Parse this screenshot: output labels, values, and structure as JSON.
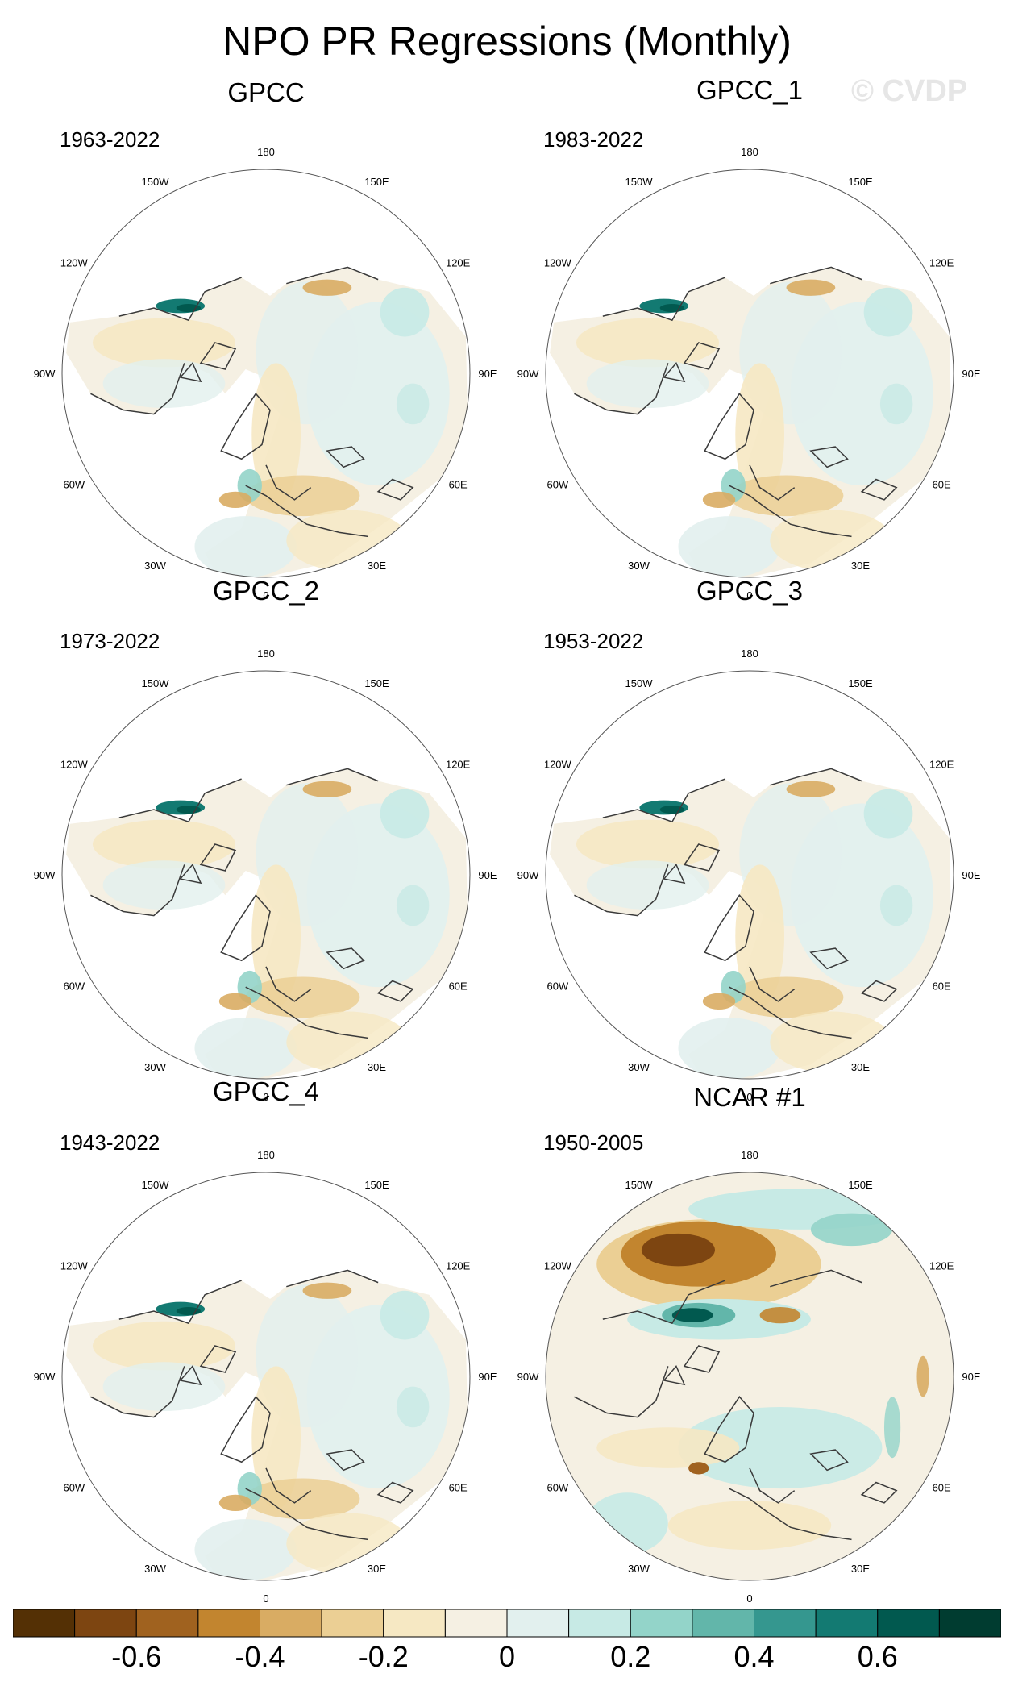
{
  "title": "NPO PR Regressions (Monthly)",
  "watermark": "© CVDP",
  "chart_data": {
    "type": "heatmap",
    "projection": "polar stereographic (Northern Hemisphere)",
    "title": "NPO PR Regressions (Monthly)",
    "longitude_labels": [
      "180",
      "150E",
      "120E",
      "90E",
      "60E",
      "30E",
      "0",
      "30W",
      "60W",
      "90W",
      "120W",
      "150W"
    ],
    "panels": [
      {
        "name": "GPCC",
        "years": "1963-2022",
        "pattern": "obs"
      },
      {
        "name": "GPCC_1",
        "years": "1983-2022",
        "pattern": "obs"
      },
      {
        "name": "GPCC_2",
        "years": "1973-2022",
        "pattern": "obs"
      },
      {
        "name": "GPCC_3",
        "years": "1953-2022",
        "pattern": "obs"
      },
      {
        "name": "GPCC_4",
        "years": "1943-2022",
        "pattern": "obs"
      },
      {
        "name": "NCAR #1",
        "years": "1950-2005",
        "pattern": "model"
      }
    ],
    "colorbar": {
      "levels": [
        -0.7,
        -0.6,
        -0.5,
        -0.4,
        -0.3,
        -0.2,
        -0.1,
        0,
        0.1,
        0.2,
        0.3,
        0.4,
        0.5,
        0.6,
        0.7
      ],
      "tick_labels": [
        "-0.6",
        "-0.4",
        "-0.2",
        "0",
        "0.2",
        "0.4",
        "0.6"
      ],
      "tick_values": [
        -0.6,
        -0.4,
        -0.2,
        0,
        0.2,
        0.4,
        0.6
      ],
      "colors": [
        "#543005",
        "#7d4511",
        "#a0621f",
        "#c2852f",
        "#d9ac63",
        "#ebcf94",
        "#f6e8c3",
        "#f5f0e3",
        "#e2f0ee",
        "#c7eae5",
        "#93d4c9",
        "#62b6aa",
        "#35978f",
        "#137a72",
        "#01594f",
        "#003c30"
      ]
    }
  }
}
